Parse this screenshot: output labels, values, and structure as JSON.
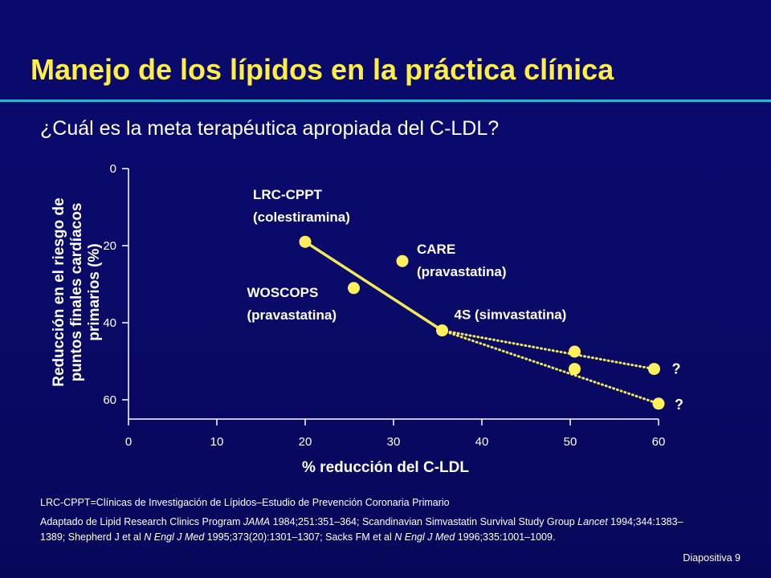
{
  "slide": {
    "title": "Manejo de los lípidos en la práctica clínica",
    "subtitle": "¿Cuál es la meta terapéutica apropiada del C-LDL?",
    "footnote_abbrev": "LRC-CPPT=Clínicas de Investigación de Lípidos–Estudio de Prevención Coronaria Primario",
    "references": [
      {
        "t": "Adaptado de Lipid Research Clinics Program ",
        "i": false
      },
      {
        "t": "JAMA",
        "i": true
      },
      {
        "t": " 1984;251:351–364; Scandinavian Simvastatin Survival Study Group ",
        "i": false
      },
      {
        "t": "Lancet",
        "i": true
      },
      {
        "t": " 1994;344:1383–1389; Shepherd J et al ",
        "i": false
      },
      {
        "t": "N Engl J Med",
        "i": true
      },
      {
        "t": " 1995;373(20):1301–1307; Sacks FM et al ",
        "i": false
      },
      {
        "t": "N Engl J Med",
        "i": true
      },
      {
        "t": " 1996;335:1001–1009.",
        "i": false
      }
    ],
    "slide_number": "Diapositiva 9"
  },
  "colors": {
    "accent_yellow": "#ffee44",
    "rule_cyan": "#2fb5d6",
    "point_fill": "#ffef5c",
    "line_color": "#f2ea5a"
  },
  "chart_data": {
    "type": "scatter",
    "xlabel": "% reducción del C-LDL",
    "ylabel_lines": [
      "Reducción en el riesgo de",
      "puntos finales cardíacos",
      "primarios  (%)"
    ],
    "xlim": [
      0,
      60
    ],
    "ylim": [
      0,
      65
    ],
    "y_inverted": true,
    "x_ticks": [
      0,
      10,
      20,
      30,
      40,
      50,
      60
    ],
    "y_ticks": [
      0,
      20,
      40,
      60
    ],
    "points": [
      {
        "id": "lrc-cppt",
        "x": 20,
        "y": 19,
        "label_lines": [
          "LRC-CPPT",
          "(colestiramina)"
        ]
      },
      {
        "id": "woscops",
        "x": 25.5,
        "y": 31,
        "label_lines": [
          "WOSCOPS",
          "(pravastatina)"
        ]
      },
      {
        "id": "care",
        "x": 31,
        "y": 24,
        "label_lines": [
          "CARE",
          "(pravastatina)"
        ]
      },
      {
        "id": "4s",
        "x": 35.5,
        "y": 42,
        "label_lines": [
          "4S (simvastatina)"
        ]
      },
      {
        "id": "proj-upper-50",
        "x": 50.5,
        "y": 47.5,
        "label_lines": []
      },
      {
        "id": "proj-lower-50",
        "x": 50.5,
        "y": 52,
        "label_lines": []
      },
      {
        "id": "proj-upper-60",
        "x": 59.5,
        "y": 52,
        "label_lines": [
          "?"
        ]
      },
      {
        "id": "proj-lower-60",
        "x": 60,
        "y": 61,
        "label_lines": [
          "?"
        ]
      }
    ],
    "solid_line": {
      "from": "lrc-cppt",
      "to": "4s"
    },
    "dotted_lines": [
      {
        "from": "4s",
        "to": "proj-upper-60"
      },
      {
        "from": "4s",
        "to": "proj-lower-60"
      }
    ]
  }
}
